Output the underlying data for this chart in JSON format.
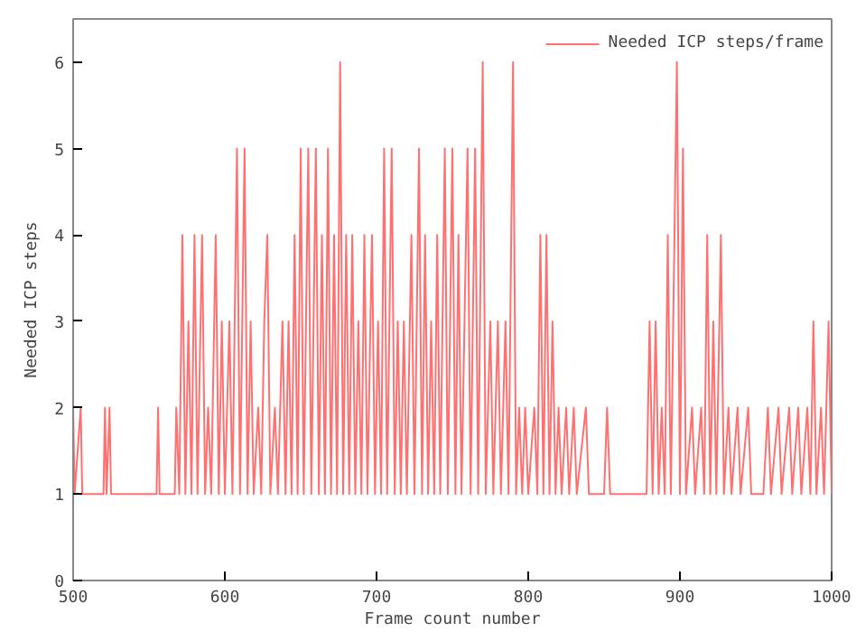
{
  "chart_data": {
    "type": "line",
    "xlabel": "Frame count number",
    "ylabel": "Needed ICP steps",
    "xlim": [
      500,
      1000
    ],
    "ylim": [
      0,
      6.5
    ],
    "xticks": [
      500,
      600,
      700,
      800,
      900,
      1000
    ],
    "yticks": [
      0,
      1,
      2,
      3,
      4,
      5,
      6
    ],
    "grid": false,
    "legend": "top right",
    "marker": "none",
    "line_style": "solid",
    "series": [
      {
        "name": "Needed ICP steps/frame",
        "color": "#ff7070",
        "x": [
          500,
          501,
          505,
          506,
          520,
          521,
          522,
          524,
          525,
          555,
          556,
          557,
          567,
          568,
          570,
          572,
          574,
          576,
          578,
          580,
          582,
          585,
          587,
          589,
          591,
          594,
          596,
          598,
          600,
          603,
          605,
          608,
          610,
          613,
          615,
          617,
          619,
          622,
          624,
          626,
          628,
          630,
          633,
          635,
          638,
          640,
          642,
          644,
          646,
          648,
          650,
          652,
          655,
          657,
          660,
          662,
          664,
          666,
          668,
          670,
          672,
          674,
          676,
          678,
          680,
          682,
          684,
          686,
          688,
          690,
          692,
          694,
          697,
          699,
          701,
          703,
          705,
          707,
          710,
          712,
          714,
          716,
          718,
          720,
          723,
          725,
          728,
          730,
          732,
          734,
          736,
          738,
          740,
          742,
          745,
          747,
          750,
          752,
          754,
          756,
          760,
          762,
          765,
          767,
          770,
          772,
          775,
          777,
          780,
          782,
          785,
          787,
          790,
          792,
          794,
          796,
          798,
          800,
          804,
          806,
          808,
          810,
          812,
          814,
          816,
          818,
          820,
          822,
          825,
          827,
          830,
          832,
          838,
          840,
          850,
          852,
          854,
          878,
          880,
          882,
          884,
          886,
          888,
          890,
          892,
          894,
          898,
          900,
          902,
          904,
          908,
          910,
          914,
          916,
          918,
          920,
          922,
          924,
          927,
          929,
          932,
          934,
          938,
          940,
          945,
          947,
          955,
          958,
          960,
          965,
          967,
          972,
          974,
          978,
          980,
          984,
          986,
          988,
          990,
          993,
          995,
          998,
          1000
        ],
        "values": [
          2,
          1,
          2,
          1,
          1,
          2,
          1,
          2,
          1,
          1,
          2,
          1,
          1,
          2,
          1,
          4,
          1,
          3,
          1,
          4,
          1,
          4,
          1,
          2,
          1,
          4,
          1,
          3,
          1,
          3,
          1,
          5,
          1,
          5,
          1,
          3,
          1,
          2,
          1,
          3,
          4,
          1,
          2,
          1,
          3,
          1,
          3,
          1,
          4,
          1,
          5,
          1,
          5,
          1,
          5,
          1,
          4,
          1,
          5,
          1,
          4,
          1,
          6,
          1,
          4,
          1,
          4,
          1,
          3,
          1,
          4,
          1,
          4,
          1,
          3,
          1,
          5,
          1,
          5,
          1,
          3,
          1,
          3,
          1,
          4,
          1,
          5,
          1,
          4,
          1,
          3,
          1,
          4,
          1,
          5,
          1,
          5,
          1,
          4,
          1,
          5,
          1,
          5,
          1,
          6,
          1,
          3,
          1,
          3,
          1,
          3,
          1,
          6,
          1,
          2,
          1,
          2,
          1,
          2,
          1,
          4,
          1,
          4,
          1,
          3,
          1,
          2,
          1,
          2,
          1,
          2,
          1,
          2,
          1,
          1,
          2,
          1,
          1,
          3,
          1,
          3,
          1,
          2,
          1,
          4,
          1,
          6,
          1,
          5,
          1,
          2,
          1,
          2,
          1,
          4,
          1,
          3,
          1,
          4,
          1,
          2,
          1,
          2,
          1,
          2,
          1,
          1,
          2,
          1,
          2,
          1,
          2,
          1,
          2,
          1,
          2,
          1,
          3,
          1,
          2,
          1,
          3,
          1
        ]
      }
    ]
  }
}
